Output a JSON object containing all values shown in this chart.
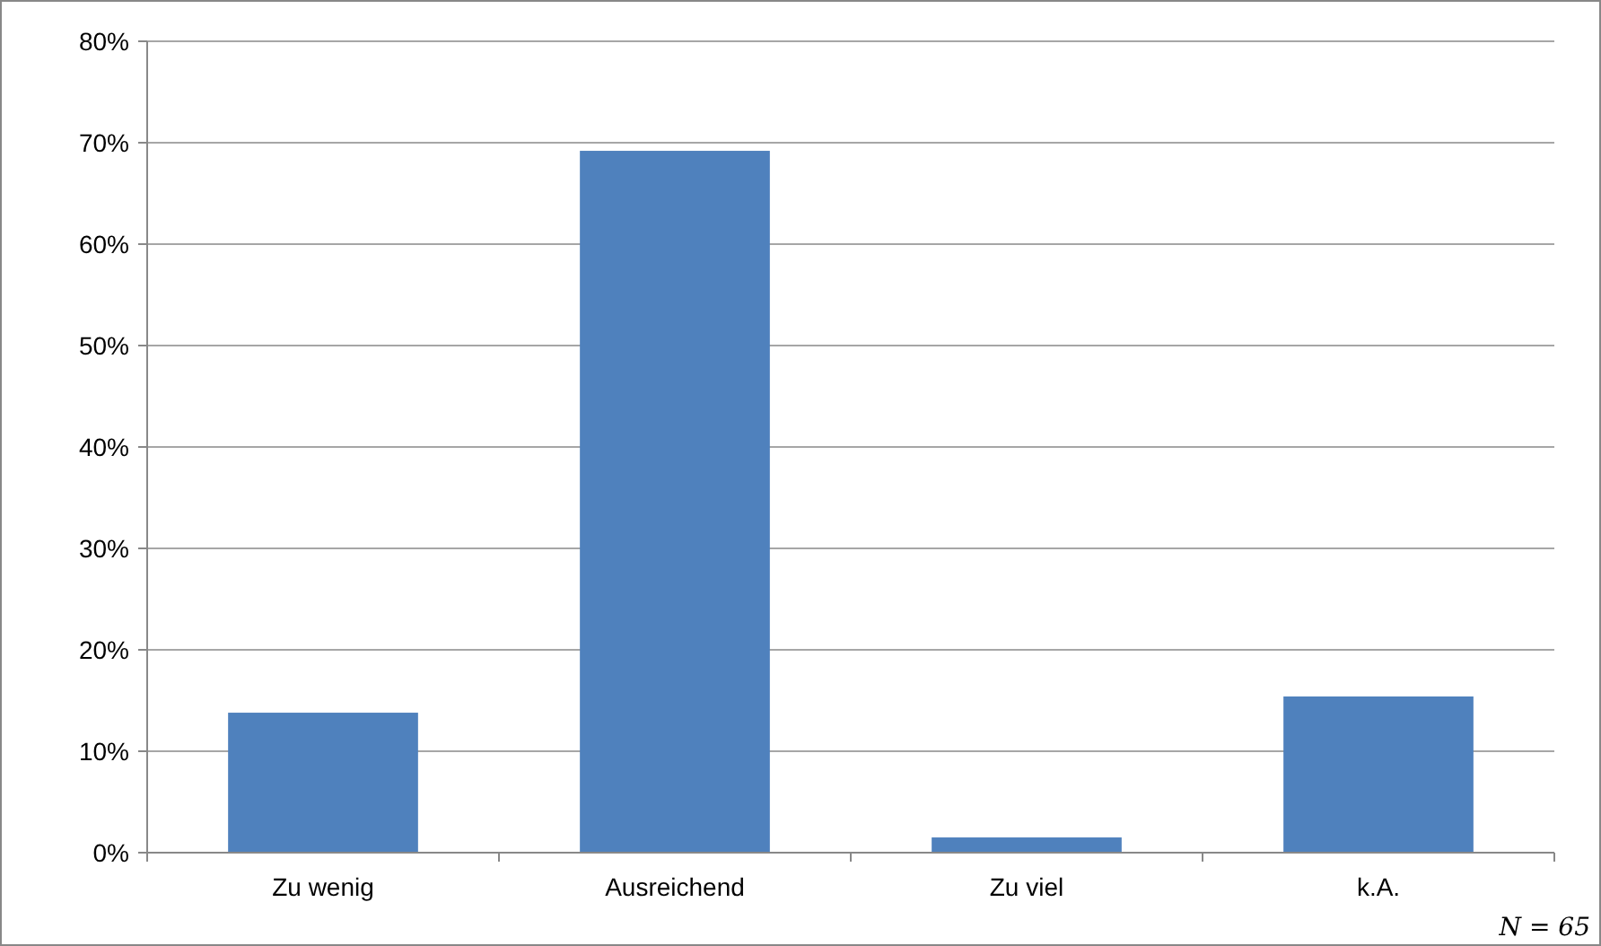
{
  "chart_data": {
    "type": "bar",
    "categories": [
      "Zu wenig",
      "Ausreichend",
      "Zu viel",
      "k.A."
    ],
    "values": [
      13.8,
      69.2,
      1.5,
      15.4
    ],
    "color": "#4f81bd",
    "ylim": [
      0,
      80
    ],
    "yticks": [
      {
        "value": 0,
        "label": "0%"
      },
      {
        "value": 10,
        "label": "10%"
      },
      {
        "value": 20,
        "label": "20%"
      },
      {
        "value": 30,
        "label": "30%"
      },
      {
        "value": 40,
        "label": "40%"
      },
      {
        "value": 50,
        "label": "50%"
      },
      {
        "value": 60,
        "label": "60%"
      },
      {
        "value": 70,
        "label": "70%"
      },
      {
        "value": 80,
        "label": "80%"
      }
    ],
    "grid": "y",
    "annotations": [
      "N = 65"
    ]
  }
}
